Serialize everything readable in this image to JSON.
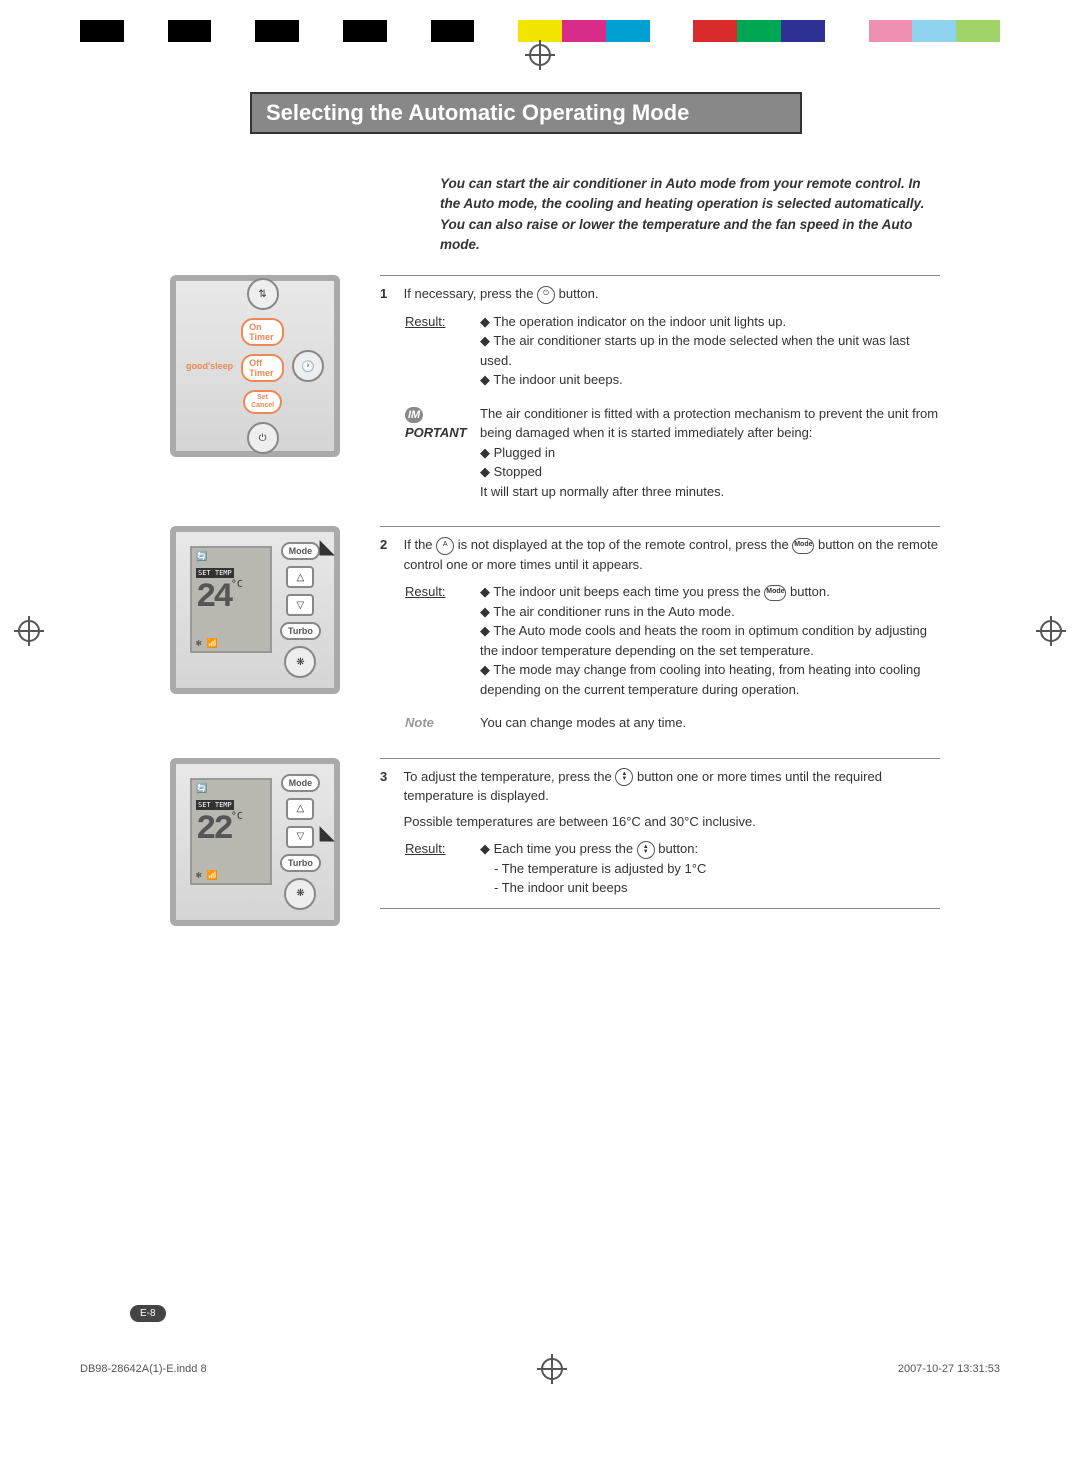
{
  "colorbar": [
    "#000000",
    "#ffffff",
    "#000000",
    "#ffffff",
    "#000000",
    "#ffffff",
    "#000000",
    "#ffffff",
    "#000000",
    "#ffffff",
    "#f2e600",
    "#d92b8a",
    "#00a0d2",
    "#ffffff",
    "#d92b2b",
    "#00a651",
    "#2e3192",
    "#ffffff",
    "#f08fb4",
    "#8fd3f0",
    "#a0d468"
  ],
  "title": "Selecting the Automatic Operating Mode",
  "intro": "You can start the air conditioner in Auto mode from your remote control. In the Auto mode, the cooling and heating operation is selected automatically. You can also raise or lower the temperature and the fan speed in the Auto mode.",
  "remote1": {
    "on_timer": "On Timer",
    "off_timer": "Off Timer",
    "set_cancel": "Set\nCancel",
    "good_sleep": "good'sleep"
  },
  "step1": {
    "num": "1",
    "text_a": "If necessary, press the ",
    "text_b": " button.",
    "result_label": "Result:",
    "results": [
      "The operation indicator on the indoor unit lights up.",
      "The air conditioner starts up in the mode selected when the unit was last used.",
      "The indoor unit beeps."
    ],
    "important_prefix": "IM",
    "important_label": "PORTANT",
    "important_text": "The air conditioner is fitted with a protection mechanism to prevent the unit from being damaged when it is started immediately after being:",
    "important_items": [
      "Plugged in",
      "Stopped"
    ],
    "important_tail": "It will start up normally after three minutes."
  },
  "remote2": {
    "mode": "Mode",
    "turbo": "Turbo",
    "temp": "24",
    "deg": "°C",
    "settemp": "SET TEMP"
  },
  "step2": {
    "num": "2",
    "text_a": "If the ",
    "text_b": " is not displayed at the top of the remote control, press the ",
    "text_c": " button on the remote control one or more times until it appears.",
    "auto_label": "Auto",
    "mode_label": "Mode",
    "result_label": "Result:",
    "results": [
      "The indoor unit beeps each time you press the |MODE| button.",
      "The air conditioner runs in the Auto mode.",
      "The Auto mode cools and heats the room in optimum condition by adjusting the indoor temperature depending on the set temperature.",
      "The mode may change from cooling into heating, from heating into cooling depending on the current temperature during operation."
    ],
    "note_label": "Note",
    "note_text": "You can change modes at any time."
  },
  "remote3": {
    "mode": "Mode",
    "turbo": "Turbo",
    "temp": "22",
    "deg": "°C",
    "settemp": "SET TEMP"
  },
  "step3": {
    "num": "3",
    "text_a": "To adjust the temperature, press the ",
    "text_b": " button one or more times until the required temperature is displayed.",
    "range": "Possible temperatures are between 16°C and 30°C inclusive.",
    "result_label": "Result:",
    "result_lead": "Each time you press the |ARROWS| button:",
    "result_items": [
      "The temperature is adjusted by 1°C",
      "The indoor unit beeps"
    ]
  },
  "page_num": "E-8",
  "footer_left": "DB98-28642A(1)-E.indd   8",
  "footer_right": "2007-10-27   13:31:53"
}
